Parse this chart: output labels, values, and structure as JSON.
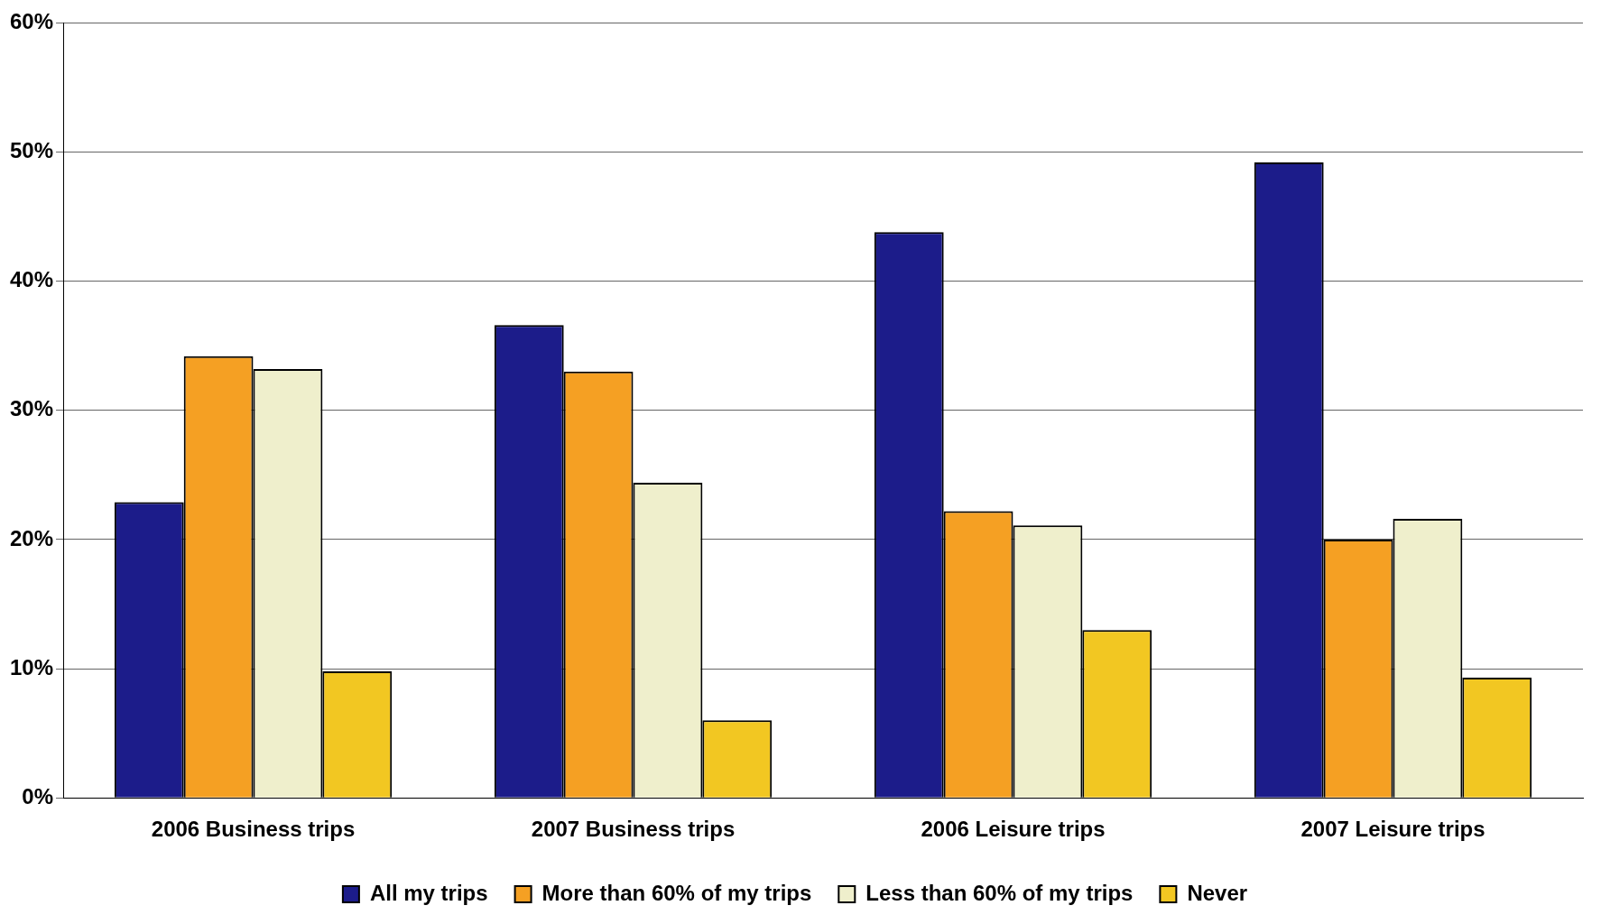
{
  "chart_data": {
    "type": "bar",
    "categories": [
      "2006 Business trips",
      "2007 Business trips",
      "2006 Leisure trips",
      "2007 Leisure trips"
    ],
    "series": [
      {
        "name": "All my trips",
        "color": "#1c1c8a",
        "values": [
          22.9,
          36.6,
          43.8,
          49.2
        ]
      },
      {
        "name": "More than 60% of my trips",
        "color": "#f5a023",
        "values": [
          34.2,
          33.0,
          22.2,
          20.0
        ]
      },
      {
        "name": "Less than 60% of my trips",
        "color": "#efefcc",
        "values": [
          33.2,
          24.4,
          21.1,
          21.6
        ]
      },
      {
        "name": "Never",
        "color": "#f2c722",
        "values": [
          9.8,
          6.0,
          13.0,
          9.3
        ]
      }
    ],
    "ylim": [
      0,
      60
    ],
    "yticks": [
      {
        "value": 0,
        "label": "0%"
      },
      {
        "value": 10,
        "label": "10%"
      },
      {
        "value": 20,
        "label": "20%"
      },
      {
        "value": 30,
        "label": "30%"
      },
      {
        "value": 40,
        "label": "40%"
      },
      {
        "value": 50,
        "label": "50%"
      },
      {
        "value": 60,
        "label": "60%"
      }
    ],
    "grid": "y",
    "legend": "bottom"
  }
}
